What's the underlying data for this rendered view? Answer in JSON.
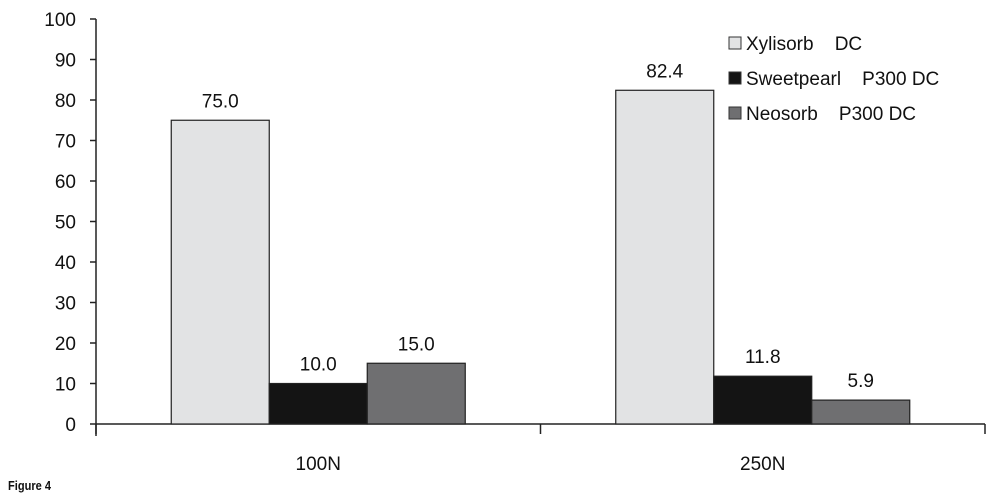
{
  "chart_data": {
    "type": "bar",
    "categories": [
      "100N",
      "250N"
    ],
    "series": [
      {
        "name": "Xylisorb    DC",
        "values": [
          75.0,
          82.4
        ],
        "color": "#e2e3e4"
      },
      {
        "name": "Sweetpearl    P300 DC",
        "values": [
          10.0,
          11.8
        ],
        "color": "#141414"
      },
      {
        "name": "Neosorb    P300 DC",
        "values": [
          15.0,
          5.9
        ],
        "color": "#6f6f71"
      }
    ],
    "data_labels": [
      [
        "75.0",
        "82.4"
      ],
      [
        "10.0",
        "11.8"
      ],
      [
        "15.0",
        "5.9"
      ]
    ],
    "ylim": [
      0,
      100
    ],
    "yticks": [
      0,
      10,
      20,
      30,
      40,
      50,
      60,
      70,
      80,
      90,
      100
    ],
    "xlabel": "",
    "ylabel": "",
    "grid": false,
    "legend_position": "top-right"
  },
  "caption": "Figure 4"
}
